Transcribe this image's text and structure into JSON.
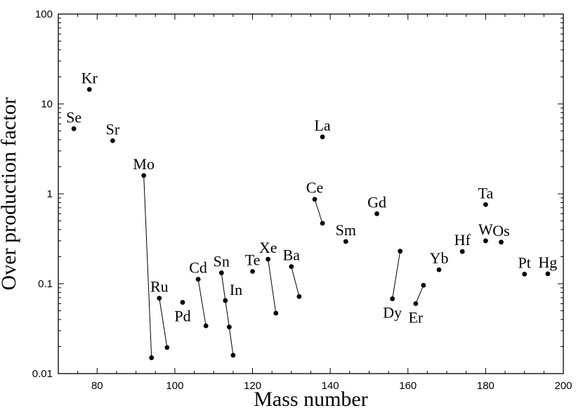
{
  "chart_data": {
    "type": "scatter",
    "title": "",
    "xlabel": "Mass number",
    "ylabel": "Over production factor",
    "xlim": [
      70,
      200
    ],
    "ylim": [
      0.01,
      100
    ],
    "yscale": "log",
    "grid": false,
    "x_ticks": [
      80,
      100,
      120,
      140,
      160,
      180,
      200
    ],
    "x_tick_labels": [
      "80",
      "100",
      "120",
      "140",
      "160",
      "180",
      "200"
    ],
    "y_ticks": [
      0.01,
      0.1,
      1,
      10,
      100
    ],
    "y_tick_labels": [
      "0.01",
      "0.1",
      "1",
      "10",
      "100"
    ],
    "points": [
      {
        "x": 74,
        "y": 5.3
      },
      {
        "x": 78,
        "y": 14.5
      },
      {
        "x": 84,
        "y": 3.9
      },
      {
        "x": 92,
        "y": 1.6
      },
      {
        "x": 94,
        "y": 0.015
      },
      {
        "x": 96,
        "y": 0.069
      },
      {
        "x": 98,
        "y": 0.0195
      },
      {
        "x": 102,
        "y": 0.062
      },
      {
        "x": 106,
        "y": 0.112
      },
      {
        "x": 108,
        "y": 0.034
      },
      {
        "x": 112,
        "y": 0.132
      },
      {
        "x": 113,
        "y": 0.065
      },
      {
        "x": 114,
        "y": 0.033
      },
      {
        "x": 115,
        "y": 0.016
      },
      {
        "x": 120,
        "y": 0.137
      },
      {
        "x": 124,
        "y": 0.187
      },
      {
        "x": 126,
        "y": 0.047
      },
      {
        "x": 130,
        "y": 0.155
      },
      {
        "x": 132,
        "y": 0.072
      },
      {
        "x": 136,
        "y": 0.87
      },
      {
        "x": 138,
        "y": 0.47
      },
      {
        "x": 138,
        "y": 4.3
      },
      {
        "x": 144,
        "y": 0.295
      },
      {
        "x": 152,
        "y": 0.6
      },
      {
        "x": 156,
        "y": 0.068
      },
      {
        "x": 158,
        "y": 0.23
      },
      {
        "x": 162,
        "y": 0.06
      },
      {
        "x": 164,
        "y": 0.096
      },
      {
        "x": 168,
        "y": 0.143
      },
      {
        "x": 174,
        "y": 0.228
      },
      {
        "x": 180,
        "y": 0.76
      },
      {
        "x": 180,
        "y": 0.3
      },
      {
        "x": 184,
        "y": 0.29
      },
      {
        "x": 190,
        "y": 0.128
      },
      {
        "x": 196,
        "y": 0.129
      }
    ],
    "connectors": [
      [
        3,
        4
      ],
      [
        5,
        6
      ],
      [
        8,
        9
      ],
      [
        10,
        11
      ],
      [
        11,
        12
      ],
      [
        12,
        13
      ],
      [
        15,
        16
      ],
      [
        17,
        18
      ],
      [
        19,
        20
      ],
      [
        24,
        25
      ],
      [
        26,
        27
      ]
    ],
    "labels": [
      {
        "text": "Se",
        "x": 74,
        "y": 5.3,
        "place": "above"
      },
      {
        "text": "Kr",
        "x": 78,
        "y": 14.5,
        "place": "above"
      },
      {
        "text": "Sr",
        "x": 84,
        "y": 3.9,
        "place": "above"
      },
      {
        "text": "Mo",
        "x": 92,
        "y": 1.6,
        "place": "above"
      },
      {
        "text": "Ru",
        "x": 96,
        "y": 0.069,
        "place": "above"
      },
      {
        "text": "Pd",
        "x": 102,
        "y": 0.062,
        "place": "below"
      },
      {
        "text": "Cd",
        "x": 106,
        "y": 0.112,
        "place": "above"
      },
      {
        "text": "Sn",
        "x": 112,
        "y": 0.132,
        "place": "above"
      },
      {
        "text": "In",
        "x": 113,
        "y": 0.065,
        "place": "right"
      },
      {
        "text": "Te",
        "x": 120,
        "y": 0.137,
        "place": "above"
      },
      {
        "text": "Xe",
        "x": 124,
        "y": 0.187,
        "place": "above"
      },
      {
        "text": "Ba",
        "x": 130,
        "y": 0.155,
        "place": "above"
      },
      {
        "text": "La",
        "x": 138,
        "y": 4.3,
        "place": "above"
      },
      {
        "text": "Ce",
        "x": 136,
        "y": 0.87,
        "place": "above"
      },
      {
        "text": "Sm",
        "x": 144,
        "y": 0.295,
        "place": "above"
      },
      {
        "text": "Gd",
        "x": 152,
        "y": 0.6,
        "place": "above"
      },
      {
        "text": "Dy",
        "x": 156,
        "y": 0.068,
        "place": "below"
      },
      {
        "text": "Er",
        "x": 162,
        "y": 0.06,
        "place": "below"
      },
      {
        "text": "Yb",
        "x": 168,
        "y": 0.143,
        "place": "above"
      },
      {
        "text": "Hf",
        "x": 174,
        "y": 0.228,
        "place": "above"
      },
      {
        "text": "Ta",
        "x": 180,
        "y": 0.76,
        "place": "above"
      },
      {
        "text": "W",
        "x": 180,
        "y": 0.3,
        "place": "above"
      },
      {
        "text": "Os",
        "x": 184,
        "y": 0.29,
        "place": "above"
      },
      {
        "text": "Pt",
        "x": 190,
        "y": 0.128,
        "place": "above"
      },
      {
        "text": "Hg",
        "x": 196,
        "y": 0.129,
        "place": "above"
      }
    ]
  }
}
